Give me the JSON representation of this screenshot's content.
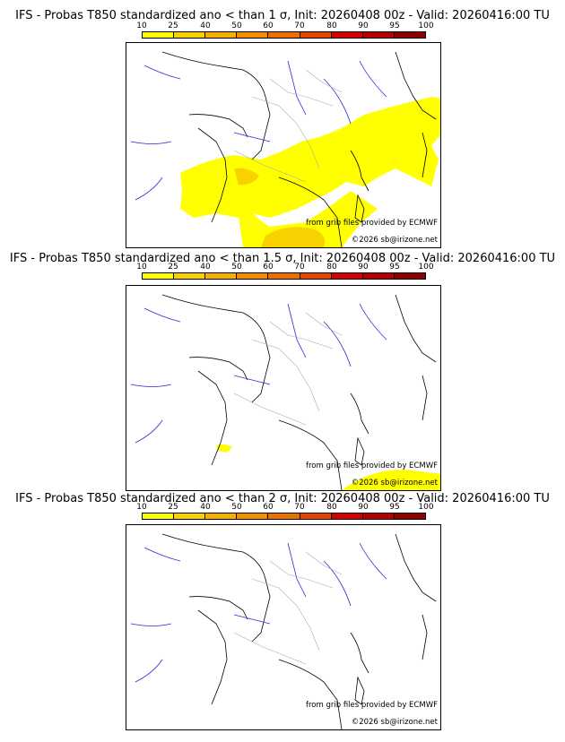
{
  "scale": {
    "labels": [
      "10",
      "25",
      "40",
      "50",
      "60",
      "70",
      "80",
      "90",
      "95",
      "100"
    ],
    "colors": [
      "#ffff00",
      "#f8d200",
      "#f5b000",
      "#f09000",
      "#eb7000",
      "#e64500",
      "#d20000",
      "#b40000",
      "#8c0000"
    ]
  },
  "panels": [
    {
      "title": "IFS - Probas T850  standardized ano < than 1 σ, Init: 20260408 00z - Valid: 20260416:00 TU",
      "credit": "from grib files provided by ECMWF",
      "copyright": "©2026 sb@irizone.net"
    },
    {
      "title": "IFS - Probas T850  standardized ano < than 1.5 σ, Init: 20260408 00z - Valid: 20260416:00 TU",
      "credit": "from grib files provided by ECMWF",
      "copyright": "©2026 sb@irizone.net"
    },
    {
      "title": "IFS - Probas T850  standardized ano < than 2 σ, Init: 20260408 00z - Valid: 20260416:00 TU",
      "credit": "from grib files provided by ECMWF",
      "copyright": "©2026 sb@irizone.net"
    }
  ]
}
